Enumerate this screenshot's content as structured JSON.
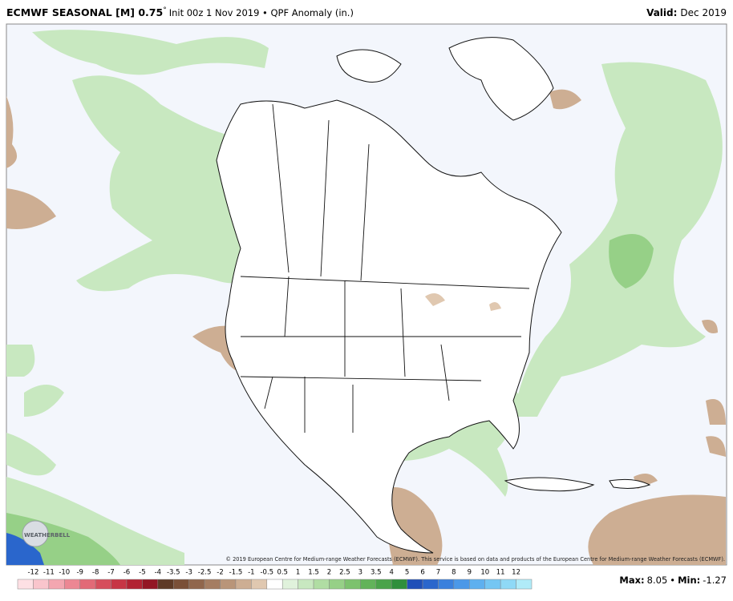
{
  "header": {
    "title": "ECMWF SEASONAL [M] 0.75",
    "degree": "°",
    "subtitle": "Init 00z 1 Nov 2019 • QPF Anomaly (in.)",
    "valid_label": "Valid:",
    "valid_value": "Dec 2019"
  },
  "credit": "© 2019 European Centre for Medium-range Weather Forecasts (ECMWF). This service is based on data and products of the European Centre for Medium-range Weather Forecasts (ECMWF).",
  "logo": "WEATHERBELL",
  "colorbar": {
    "labels": [
      -12,
      -11,
      -10,
      -9,
      -8,
      -7,
      -6,
      -5,
      -4,
      -3.5,
      -3,
      -2.5,
      -2,
      -1.5,
      -1,
      -0.5,
      0.5,
      1,
      1.5,
      2,
      2.5,
      3,
      3.5,
      4,
      5,
      6,
      7,
      8,
      9,
      10,
      11,
      12
    ],
    "colors": [
      "#fde0e4",
      "#f9c5cc",
      "#f3a6b0",
      "#ec8793",
      "#e26a77",
      "#d64e5c",
      "#c73645",
      "#b22232",
      "#931624",
      "#5e3a26",
      "#7a5038",
      "#90664c",
      "#a57d62",
      "#b99579",
      "#cdae93",
      "#e0c8b0",
      "#ffffff",
      "#e0f2dc",
      "#c8e8c0",
      "#b0dda3",
      "#96d087",
      "#7cc26e",
      "#62b35a",
      "#4aa34a",
      "#2f8f3c",
      "#1f4fb8",
      "#2a66cc",
      "#3a80dd",
      "#4b98e8",
      "#5eb0ef",
      "#74c6f3",
      "#8fd9f6",
      "#b0ebf8"
    ]
  },
  "stats": {
    "max_label": "Max:",
    "max_value": 8.05,
    "separator": "•",
    "min_label": "Min:",
    "min_value": -1.27
  }
}
